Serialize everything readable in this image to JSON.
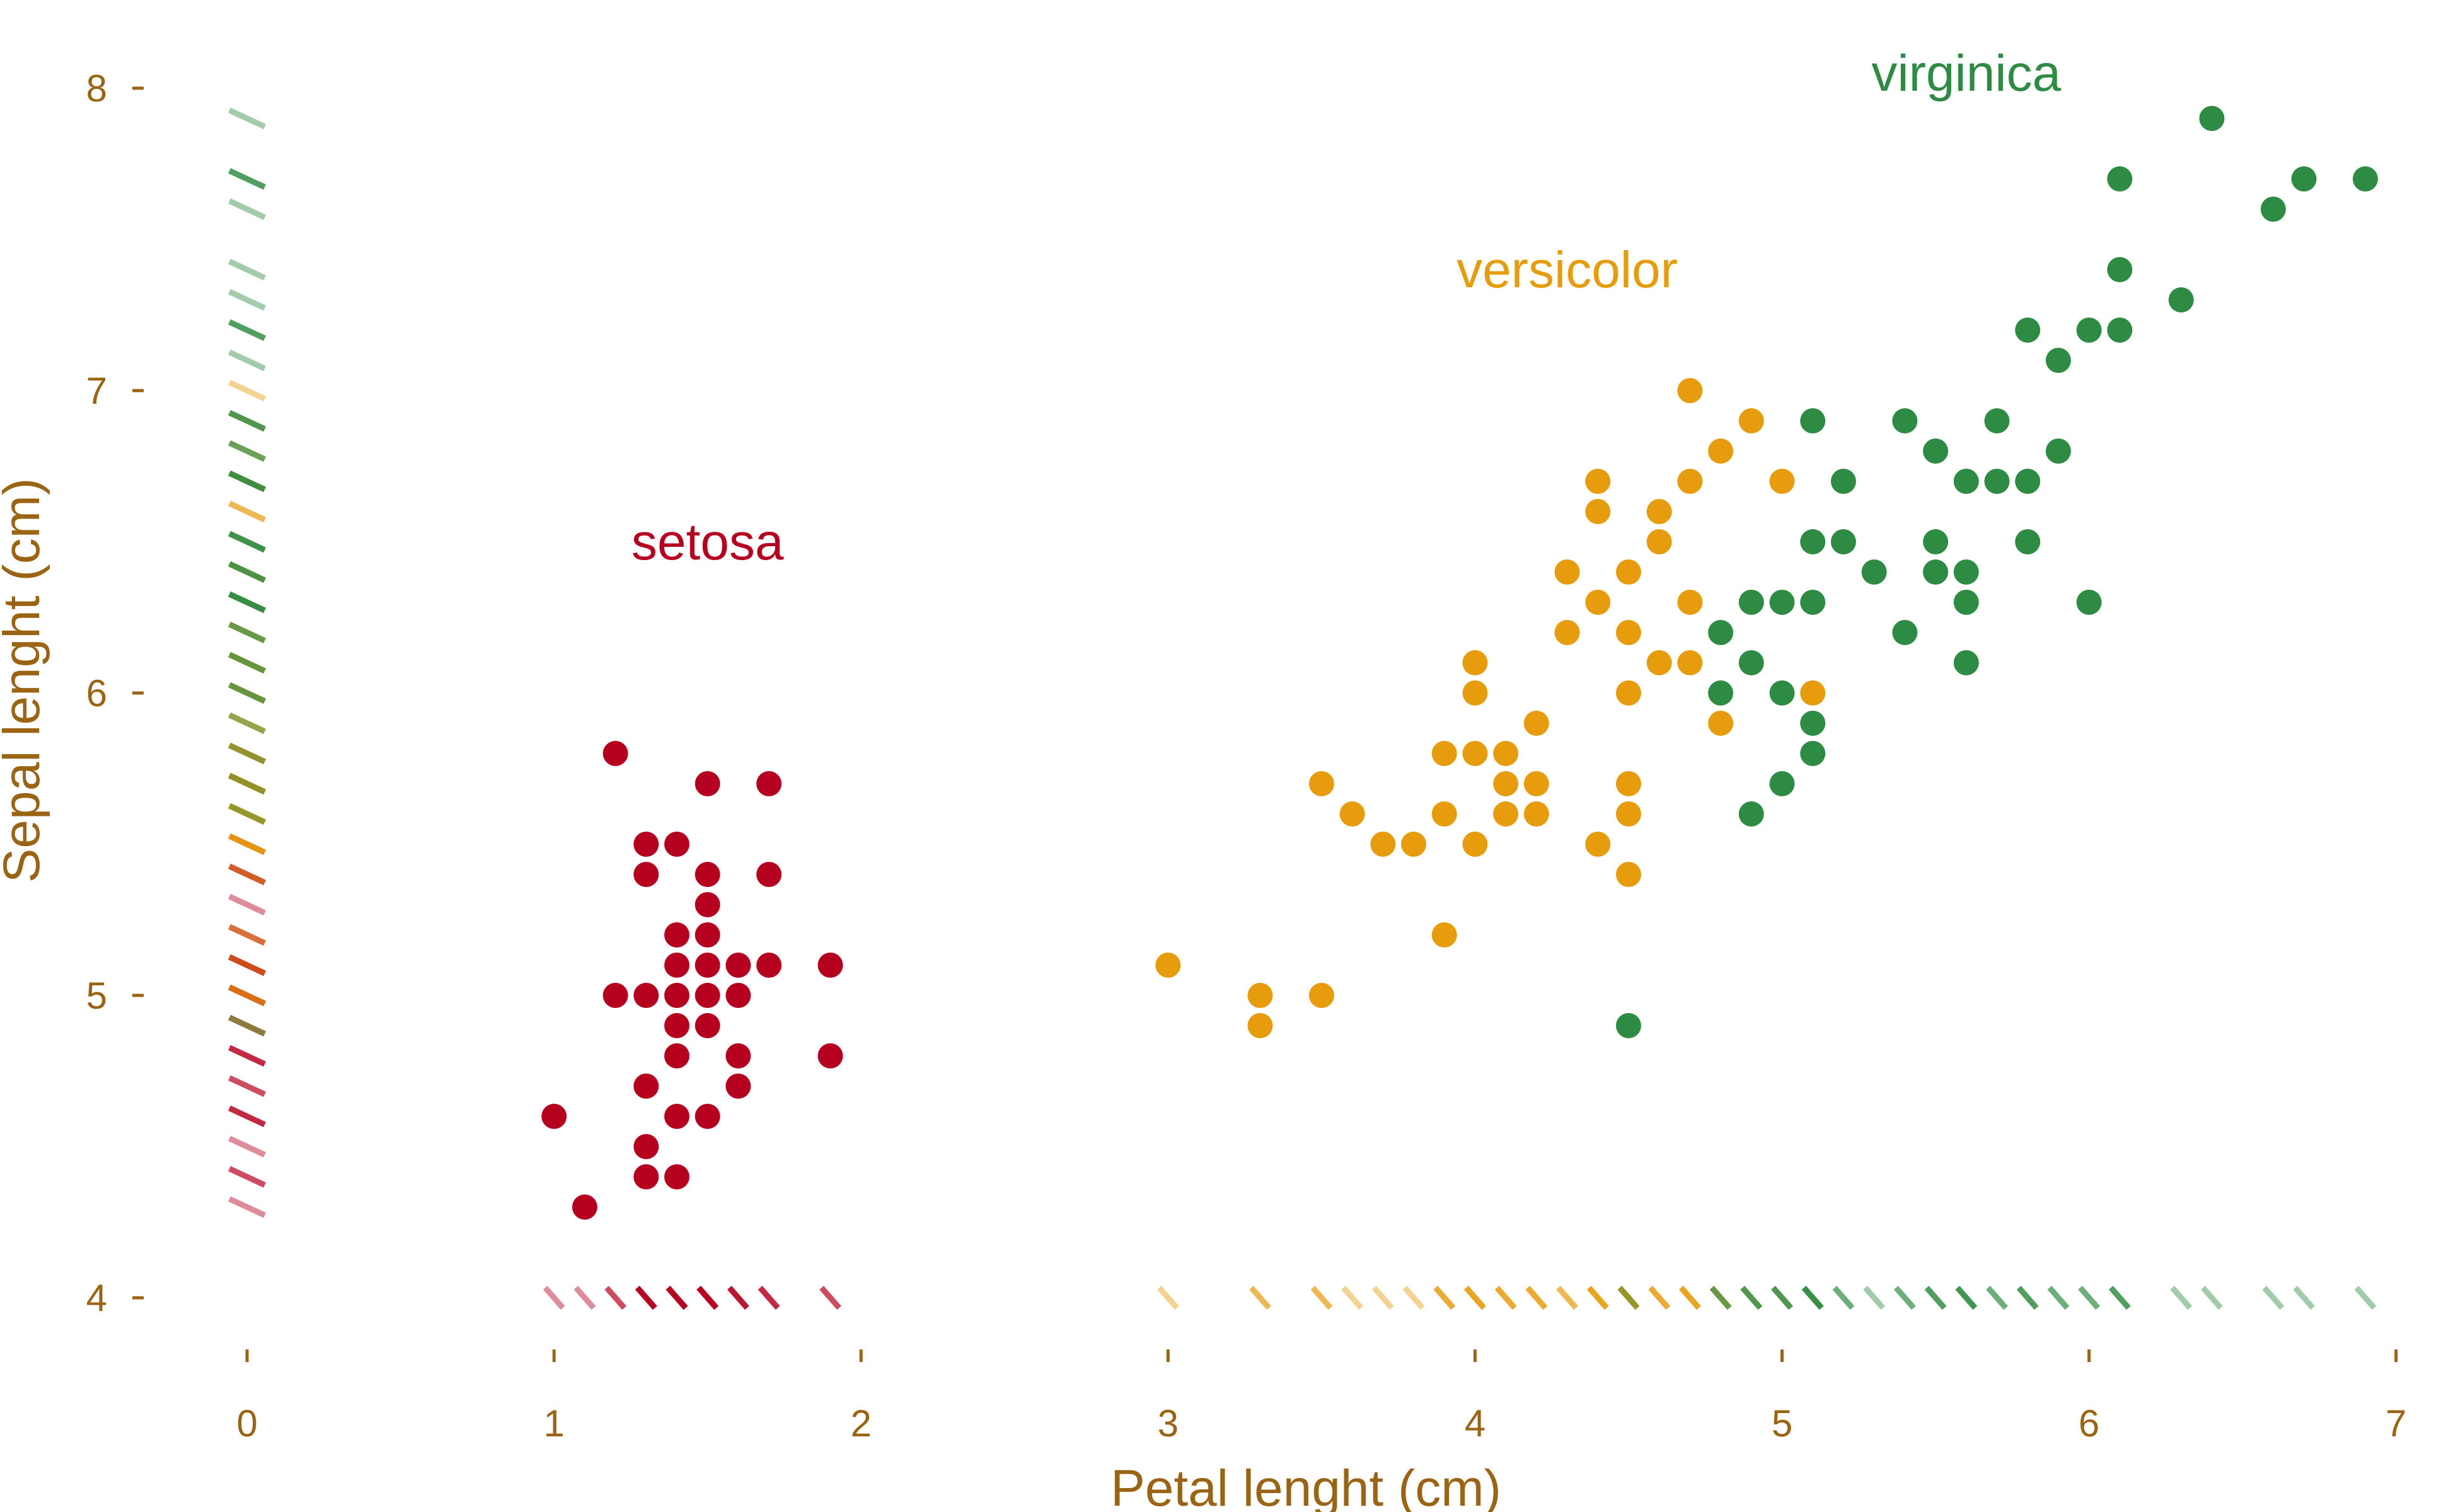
{
  "colors": {
    "setosa": "#b5001f",
    "versicolor": "#e69c0c",
    "virginica": "#2e8b43",
    "axis_text": "#9a6414"
  },
  "chart_data": {
    "type": "scatter",
    "title": "",
    "xlabel": "Petal lenght (cm)",
    "ylabel": "Sepal lenght (cm)",
    "xlim": [
      0,
      7
    ],
    "ylim": [
      4,
      8
    ],
    "x_ticks": [
      "0",
      "1",
      "2",
      "3",
      "4",
      "5",
      "6",
      "7"
    ],
    "y_ticks": [
      "4",
      "5",
      "6",
      "7",
      "8"
    ],
    "grid": false,
    "legend": "direct labels",
    "rug": true,
    "series": [
      {
        "name": "setosa",
        "color": "#b5001f",
        "label_at": [
          1.5,
          6.5
        ],
        "points": [
          [
            1.0,
            4.6
          ],
          [
            1.1,
            4.3
          ],
          [
            1.2,
            5.8
          ],
          [
            1.2,
            5.0
          ],
          [
            1.3,
            5.5
          ],
          [
            1.3,
            5.4
          ],
          [
            1.3,
            5.0
          ],
          [
            1.3,
            4.7
          ],
          [
            1.3,
            4.5
          ],
          [
            1.3,
            4.4
          ],
          [
            1.4,
            5.5
          ],
          [
            1.4,
            5.2
          ],
          [
            1.4,
            5.1
          ],
          [
            1.4,
            5.0
          ],
          [
            1.4,
            4.9
          ],
          [
            1.4,
            4.8
          ],
          [
            1.4,
            4.6
          ],
          [
            1.4,
            4.4
          ],
          [
            1.5,
            5.7
          ],
          [
            1.5,
            5.4
          ],
          [
            1.5,
            5.3
          ],
          [
            1.5,
            5.2
          ],
          [
            1.5,
            5.1
          ],
          [
            1.5,
            5.0
          ],
          [
            1.5,
            4.9
          ],
          [
            1.5,
            4.6
          ],
          [
            1.6,
            5.1
          ],
          [
            1.6,
            5.0
          ],
          [
            1.6,
            4.8
          ],
          [
            1.6,
            4.7
          ],
          [
            1.7,
            5.7
          ],
          [
            1.7,
            5.4
          ],
          [
            1.7,
            5.1
          ],
          [
            1.9,
            5.1
          ],
          [
            1.9,
            4.8
          ]
        ]
      },
      {
        "name": "versicolor",
        "color": "#e69c0c",
        "label_at": [
          4.3,
          7.4
        ],
        "points": [
          [
            3.0,
            5.1
          ],
          [
            3.3,
            5.0
          ],
          [
            3.3,
            4.9
          ],
          [
            3.5,
            5.7
          ],
          [
            3.5,
            5.0
          ],
          [
            3.6,
            5.6
          ],
          [
            3.7,
            5.5
          ],
          [
            3.8,
            5.5
          ],
          [
            3.9,
            5.8
          ],
          [
            3.9,
            5.6
          ],
          [
            3.9,
            5.2
          ],
          [
            4.0,
            6.1
          ],
          [
            4.0,
            6.0
          ],
          [
            4.0,
            5.8
          ],
          [
            4.0,
            5.5
          ],
          [
            4.1,
            5.8
          ],
          [
            4.1,
            5.7
          ],
          [
            4.1,
            5.6
          ],
          [
            4.2,
            5.9
          ],
          [
            4.2,
            5.7
          ],
          [
            4.2,
            5.6
          ],
          [
            4.3,
            6.4
          ],
          [
            4.3,
            6.2
          ],
          [
            4.4,
            6.7
          ],
          [
            4.4,
            6.6
          ],
          [
            4.4,
            6.3
          ],
          [
            4.4,
            5.5
          ],
          [
            4.5,
            6.4
          ],
          [
            4.5,
            6.2
          ],
          [
            4.5,
            6.0
          ],
          [
            4.5,
            5.7
          ],
          [
            4.5,
            5.6
          ],
          [
            4.5,
            5.4
          ],
          [
            4.6,
            6.6
          ],
          [
            4.6,
            6.5
          ],
          [
            4.6,
            6.1
          ],
          [
            4.7,
            7.0
          ],
          [
            4.7,
            6.7
          ],
          [
            4.7,
            6.3
          ],
          [
            4.7,
            6.1
          ],
          [
            4.8,
            6.8
          ],
          [
            4.8,
            5.9
          ],
          [
            4.9,
            6.9
          ],
          [
            5.0,
            6.7
          ],
          [
            5.1,
            6.0
          ]
        ]
      },
      {
        "name": "virginica",
        "color": "#2e8b43",
        "label_at": [
          5.6,
          8.05
        ],
        "points": [
          [
            4.5,
            4.9
          ],
          [
            4.8,
            6.2
          ],
          [
            4.8,
            6.0
          ],
          [
            4.9,
            6.3
          ],
          [
            4.9,
            6.1
          ],
          [
            4.9,
            5.6
          ],
          [
            5.0,
            6.3
          ],
          [
            5.0,
            6.0
          ],
          [
            5.0,
            5.7
          ],
          [
            5.1,
            6.9
          ],
          [
            5.1,
            6.5
          ],
          [
            5.1,
            6.3
          ],
          [
            5.1,
            5.9
          ],
          [
            5.1,
            5.8
          ],
          [
            5.2,
            6.7
          ],
          [
            5.2,
            6.5
          ],
          [
            5.3,
            6.4
          ],
          [
            5.4,
            6.9
          ],
          [
            5.4,
            6.2
          ],
          [
            5.5,
            6.8
          ],
          [
            5.5,
            6.5
          ],
          [
            5.5,
            6.4
          ],
          [
            5.6,
            6.7
          ],
          [
            5.6,
            6.4
          ],
          [
            5.6,
            6.3
          ],
          [
            5.6,
            6.1
          ],
          [
            5.7,
            6.9
          ],
          [
            5.7,
            6.7
          ],
          [
            5.8,
            7.2
          ],
          [
            5.8,
            6.7
          ],
          [
            5.8,
            6.5
          ],
          [
            5.9,
            7.1
          ],
          [
            5.9,
            6.8
          ],
          [
            6.0,
            7.2
          ],
          [
            6.0,
            6.3
          ],
          [
            6.1,
            7.7
          ],
          [
            6.1,
            7.4
          ],
          [
            6.1,
            7.2
          ],
          [
            6.3,
            7.3
          ],
          [
            6.4,
            7.9
          ],
          [
            6.6,
            7.6
          ],
          [
            6.7,
            7.7
          ],
          [
            6.9,
            7.7
          ]
        ]
      }
    ]
  }
}
